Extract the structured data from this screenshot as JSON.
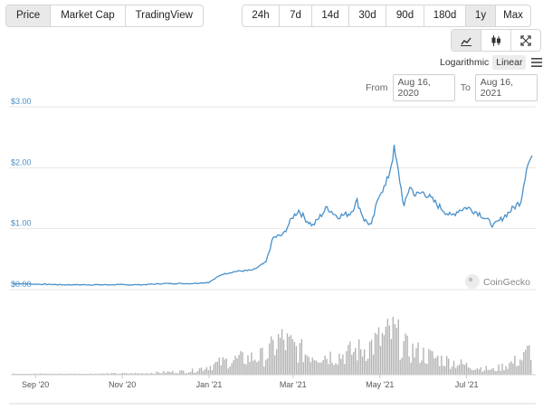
{
  "view_tabs": [
    {
      "label": "Price",
      "active": true
    },
    {
      "label": "Market Cap",
      "active": false
    },
    {
      "label": "TradingView",
      "active": false
    }
  ],
  "range_tabs": [
    {
      "label": "24h",
      "active": false
    },
    {
      "label": "7d",
      "active": false
    },
    {
      "label": "14d",
      "active": false
    },
    {
      "label": "30d",
      "active": false
    },
    {
      "label": "90d",
      "active": false
    },
    {
      "label": "180d",
      "active": false
    },
    {
      "label": "1y",
      "active": true
    },
    {
      "label": "Max",
      "active": false
    }
  ],
  "tools": [
    {
      "icon": "line-chart-icon",
      "active": true
    },
    {
      "icon": "candlestick-icon",
      "active": false
    },
    {
      "icon": "fullscreen-icon",
      "active": false
    }
  ],
  "scale": {
    "logarithmic": "Logarithmic",
    "linear": "Linear",
    "active": "linear"
  },
  "date_range": {
    "from_label": "From",
    "from": "Aug 16, 2020",
    "to_label": "To",
    "to": "Aug 16, 2021"
  },
  "watermark": "CoinGecko",
  "colors": {
    "line": "#4a90c9",
    "volume": "#999999",
    "grid": "#e6e6e6",
    "active_tab": "#e9e9e9"
  },
  "chart_data": {
    "type": "line",
    "title": "",
    "xlabel": "",
    "ylabel": "",
    "y_ticks": [
      "$3.00",
      "$2.00",
      "$1.00",
      "$0.00"
    ],
    "ylim": [
      0,
      3
    ],
    "x_ticks": [
      "Sep '20",
      "Nov '20",
      "Jan '21",
      "Mar '21",
      "May '21",
      "Jul '21"
    ],
    "xlim": [
      "2020-08-16",
      "2021-08-16"
    ],
    "grid": true,
    "series": [
      {
        "values": [
          [
            "2020-08-16",
            0.1
          ],
          [
            "2020-09-01",
            0.09
          ],
          [
            "2020-09-20",
            0.08
          ],
          [
            "2020-10-15",
            0.08
          ],
          [
            "2020-11-15",
            0.08
          ],
          [
            "2020-12-01",
            0.1
          ],
          [
            "2020-12-20",
            0.1
          ],
          [
            "2021-01-01",
            0.12
          ],
          [
            "2021-01-10",
            0.25
          ],
          [
            "2021-01-20",
            0.3
          ],
          [
            "2021-02-01",
            0.32
          ],
          [
            "2021-02-10",
            0.45
          ],
          [
            "2021-02-15",
            0.85
          ],
          [
            "2021-02-22",
            0.9
          ],
          [
            "2021-03-01",
            1.2
          ],
          [
            "2021-03-05",
            1.3
          ],
          [
            "2021-03-10",
            1.15
          ],
          [
            "2021-03-15",
            1.05
          ],
          [
            "2021-03-20",
            1.2
          ],
          [
            "2021-03-25",
            1.35
          ],
          [
            "2021-04-01",
            1.2
          ],
          [
            "2021-04-10",
            1.25
          ],
          [
            "2021-04-15",
            1.45
          ],
          [
            "2021-04-20",
            1.15
          ],
          [
            "2021-04-25",
            1.05
          ],
          [
            "2021-05-01",
            1.6
          ],
          [
            "2021-05-05",
            1.7
          ],
          [
            "2021-05-08",
            1.95
          ],
          [
            "2021-05-11",
            2.3
          ],
          [
            "2021-05-15",
            1.8
          ],
          [
            "2021-05-18",
            1.35
          ],
          [
            "2021-05-22",
            1.7
          ],
          [
            "2021-05-26",
            1.55
          ],
          [
            "2021-06-01",
            1.6
          ],
          [
            "2021-06-10",
            1.4
          ],
          [
            "2021-06-20",
            1.2
          ],
          [
            "2021-06-25",
            1.3
          ],
          [
            "2021-07-01",
            1.35
          ],
          [
            "2021-07-10",
            1.25
          ],
          [
            "2021-07-20",
            1.05
          ],
          [
            "2021-07-25",
            1.15
          ],
          [
            "2021-08-01",
            1.3
          ],
          [
            "2021-08-08",
            1.45
          ],
          [
            "2021-08-12",
            2.0
          ],
          [
            "2021-08-16",
            2.2
          ]
        ]
      }
    ],
    "volume_relative": [
      [
        "2020-08-16",
        0.02
      ],
      [
        "2020-10-01",
        0.02
      ],
      [
        "2020-11-15",
        0.03
      ],
      [
        "2020-12-20",
        0.08
      ],
      [
        "2021-01-15",
        0.3
      ],
      [
        "2021-02-10",
        0.4
      ],
      [
        "2021-02-20",
        0.75
      ],
      [
        "2021-03-10",
        0.45
      ],
      [
        "2021-04-01",
        0.4
      ],
      [
        "2021-04-20",
        0.55
      ],
      [
        "2021-05-11",
        0.9
      ],
      [
        "2021-05-20",
        0.55
      ],
      [
        "2021-06-10",
        0.35
      ],
      [
        "2021-07-01",
        0.2
      ],
      [
        "2021-07-20",
        0.1
      ],
      [
        "2021-08-10",
        0.35
      ],
      [
        "2021-08-16",
        0.6
      ]
    ]
  }
}
